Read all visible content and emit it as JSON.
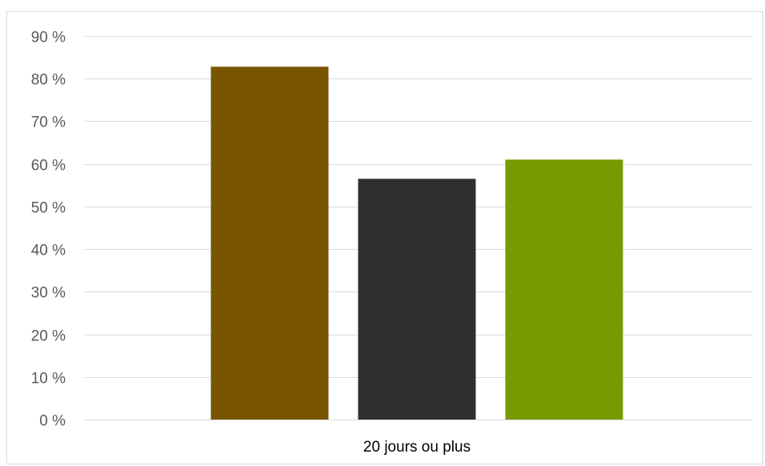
{
  "chart_data": {
    "type": "bar",
    "categories": [
      "20 jours ou plus"
    ],
    "series": [
      {
        "values": [
          82.8
        ],
        "color": "#7a5500"
      },
      {
        "values": [
          56.5
        ],
        "color": "#2f2f2f"
      },
      {
        "values": [
          61.0
        ],
        "color": "#789a00"
      }
    ],
    "ylim": [
      0,
      90
    ],
    "y_ticks": [
      0,
      10,
      20,
      30,
      40,
      50,
      60,
      70,
      80,
      90
    ],
    "y_tick_labels": [
      "0 %",
      "10 %",
      "20 %",
      "30 %",
      "40 %",
      "50 %",
      "60 %",
      "70 %",
      "80 %",
      "90 %"
    ],
    "grid": true,
    "title": "",
    "xlabel": "",
    "ylabel": ""
  }
}
